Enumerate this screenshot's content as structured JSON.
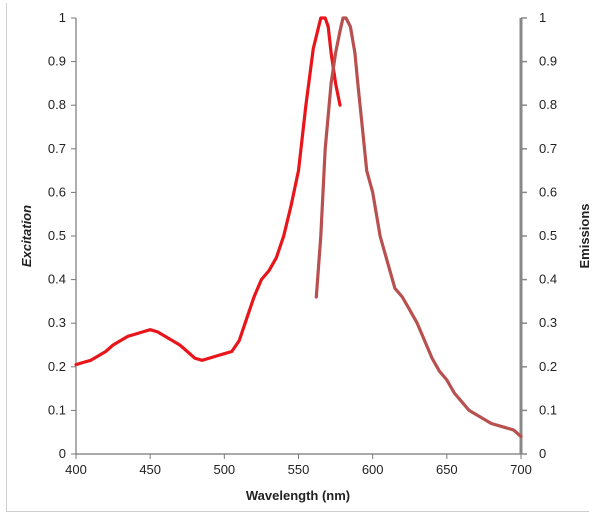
{
  "chart_data": {
    "type": "line",
    "title": "",
    "xlabel": "Wavelength (nm)",
    "ylabel_left": "Excitation",
    "ylabel_right": "Emissions",
    "xlim": [
      400,
      700
    ],
    "ylim_left": [
      0,
      1
    ],
    "ylim_right": [
      0,
      1
    ],
    "x_ticks": [
      "400",
      "450",
      "500",
      "550",
      "600",
      "650",
      "700"
    ],
    "y_ticks_left": [
      "0",
      "0.1",
      "0.2",
      "0.3",
      "0.4",
      "0.5",
      "0.6",
      "0.7",
      "0.8",
      "0.9",
      "1"
    ],
    "y_ticks_right": [
      "0",
      "0.1",
      "0.2",
      "0.3",
      "0.4",
      "0.5",
      "0.6",
      "0.7",
      "0.8",
      "0.9",
      "1"
    ],
    "grid": false,
    "legend": "none",
    "series": [
      {
        "axis": "left",
        "color": "#e8151b",
        "x": [
          400,
          405,
          410,
          415,
          420,
          425,
          430,
          435,
          440,
          445,
          450,
          455,
          460,
          465,
          470,
          475,
          480,
          485,
          490,
          495,
          500,
          505,
          510,
          515,
          520,
          525,
          530,
          535,
          540,
          545,
          550,
          555,
          560,
          565,
          568,
          570,
          572,
          575,
          578
        ],
        "y": [
          0.205,
          0.21,
          0.215,
          0.225,
          0.235,
          0.25,
          0.26,
          0.27,
          0.275,
          0.28,
          0.285,
          0.28,
          0.27,
          0.26,
          0.25,
          0.235,
          0.22,
          0.215,
          0.22,
          0.225,
          0.23,
          0.235,
          0.26,
          0.31,
          0.36,
          0.4,
          0.42,
          0.45,
          0.5,
          0.57,
          0.65,
          0.8,
          0.93,
          1.0,
          1.0,
          0.98,
          0.92,
          0.85,
          0.8
        ]
      },
      {
        "axis": "right",
        "color": "#b85050",
        "x": [
          562,
          565,
          568,
          572,
          575,
          578,
          580,
          582,
          585,
          588,
          590,
          593,
          596,
          600,
          605,
          610,
          615,
          620,
          625,
          630,
          635,
          640,
          645,
          650,
          655,
          660,
          665,
          670,
          675,
          680,
          685,
          690,
          695,
          700
        ],
        "y": [
          0.36,
          0.5,
          0.7,
          0.85,
          0.92,
          0.97,
          1.0,
          1.0,
          0.98,
          0.92,
          0.85,
          0.75,
          0.65,
          0.6,
          0.5,
          0.44,
          0.38,
          0.36,
          0.33,
          0.3,
          0.26,
          0.22,
          0.19,
          0.17,
          0.14,
          0.12,
          0.1,
          0.09,
          0.08,
          0.07,
          0.065,
          0.06,
          0.055,
          0.04
        ]
      }
    ]
  }
}
